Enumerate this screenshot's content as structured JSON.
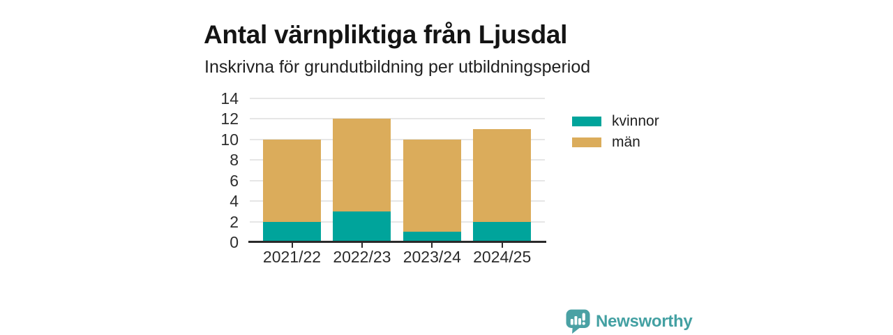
{
  "header": {
    "title": "Antal värnpliktiga från Ljusdal",
    "subtitle": "Inskrivna för grundutbildning per utbildningsperiod"
  },
  "chart_data": {
    "type": "bar",
    "stacked": true,
    "title": "Antal värnpliktiga från Ljusdal",
    "subtitle": "Inskrivna för grundutbildning per utbildningsperiod",
    "categories": [
      "2021/22",
      "2022/23",
      "2023/24",
      "2024/25"
    ],
    "series": [
      {
        "name": "kvinnor",
        "color": "#00a49b",
        "values": [
          2,
          3,
          1,
          2
        ]
      },
      {
        "name": "män",
        "color": "#dbac5b",
        "values": [
          8,
          9,
          9,
          9
        ]
      }
    ],
    "stack_totals": [
      10,
      12,
      10,
      11
    ],
    "xlabel": "",
    "ylabel": "",
    "ylim": [
      0,
      14
    ],
    "yticks": [
      0,
      2,
      4,
      6,
      8,
      10,
      12,
      14
    ],
    "grid": true,
    "legend_position": "right",
    "colors": {
      "grid": "#e6e6e6",
      "axis": "#2a2a2a",
      "text": "#2e2e2e"
    }
  },
  "branding": {
    "name": "Newsworthy",
    "color": "#43a0a2",
    "logo_icon": "newsworthy-speech-bubble-bar-chart-icon"
  }
}
